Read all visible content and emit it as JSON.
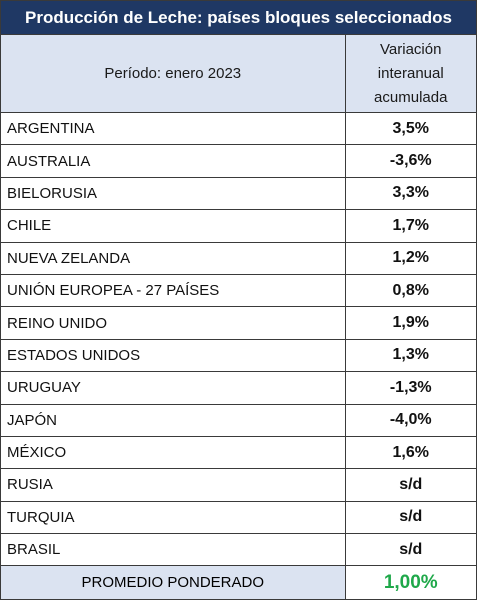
{
  "title": "Producción de Leche: países bloques seleccionados",
  "header": {
    "period": "Período: enero 2023",
    "variation_line1": "Variación",
    "variation_line2": "interanual",
    "variation_line3": "acumulada"
  },
  "rows": [
    {
      "country": "ARGENTINA",
      "value": "3,5%",
      "sign": "pos"
    },
    {
      "country": "AUSTRALIA",
      "value": "-3,6%",
      "sign": "neg"
    },
    {
      "country": "BIELORUSIA",
      "value": "3,3%",
      "sign": "pos"
    },
    {
      "country": "CHILE",
      "value": "1,7%",
      "sign": "pos"
    },
    {
      "country": "NUEVA ZELANDA",
      "value": "1,2%",
      "sign": "pos"
    },
    {
      "country": "UNIÓN EUROPEA - 27 PAÍSES",
      "value": "0,8%",
      "sign": "pos"
    },
    {
      "country": "REINO UNIDO",
      "value": "1,9%",
      "sign": "pos"
    },
    {
      "country": "ESTADOS UNIDOS",
      "value": "1,3%",
      "sign": "pos"
    },
    {
      "country": "URUGUAY",
      "value": "-1,3%",
      "sign": "neg"
    },
    {
      "country": "JAPÓN",
      "value": "-4,0%",
      "sign": "neg"
    },
    {
      "country": "MÉXICO",
      "value": "1,6%",
      "sign": "pos"
    },
    {
      "country": "RUSIA",
      "value": "s/d",
      "sign": "none"
    },
    {
      "country": "TURQUIA",
      "value": "s/d",
      "sign": "none"
    },
    {
      "country": "BRASIL",
      "value": "s/d",
      "sign": "none"
    }
  ],
  "footer": {
    "label": "PROMEDIO PONDERADO",
    "value": "1,00%"
  },
  "colors": {
    "title_bg": "#1f3864",
    "header_bg": "#dbe3f1",
    "positive": "#1fa84a",
    "negative": "#e02424"
  }
}
